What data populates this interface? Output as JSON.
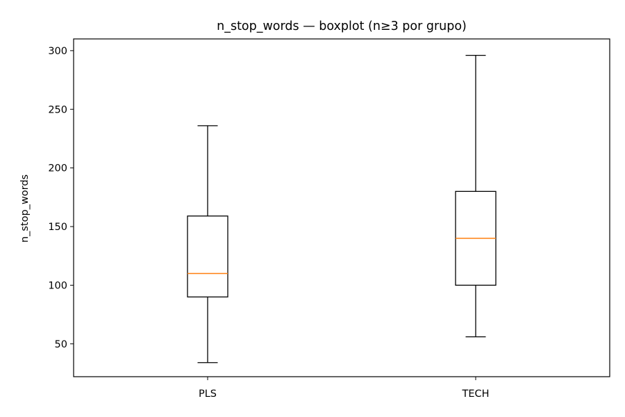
{
  "chart_data": {
    "type": "boxplot",
    "title": "n_stop_words — boxplot (n≥3 por grupo)",
    "xlabel": "",
    "ylabel": "n_stop_words",
    "categories": [
      "PLS",
      "TECH"
    ],
    "boxes": [
      {
        "category": "PLS",
        "whisker_low": 34,
        "q1": 90,
        "median": 110,
        "q3": 159,
        "whisker_high": 236
      },
      {
        "category": "TECH",
        "whisker_low": 56,
        "q1": 100,
        "median": 140,
        "q3": 180,
        "whisker_high": 296
      }
    ],
    "ylim": [
      22,
      310
    ],
    "yticks": [
      50,
      100,
      150,
      200,
      250,
      300
    ],
    "grid": false,
    "legend": "none",
    "colors": {
      "box": "#000000",
      "median": "#ff7f0e",
      "whisker": "#000000"
    }
  }
}
